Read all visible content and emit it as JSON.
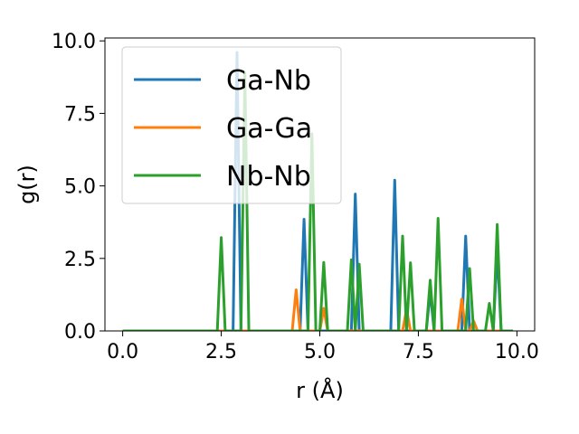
{
  "chart_data": {
    "type": "line",
    "xlabel": "r (Å)",
    "ylabel": "g(r)",
    "xlim": [
      -0.45,
      10.45
    ],
    "ylim": [
      0,
      10.1
    ],
    "xticks": [
      0.0,
      2.5,
      5.0,
      7.5,
      10.0
    ],
    "xtick_labels": [
      "0.0",
      "2.5",
      "5.0",
      "7.5",
      "10.0"
    ],
    "yticks": [
      0.0,
      2.5,
      5.0,
      7.5,
      10.0
    ],
    "ytick_labels": [
      "0.0",
      "2.5",
      "5.0",
      "7.5",
      "10.0"
    ],
    "grid": false,
    "legend_placement": "upper left",
    "series": [
      {
        "name": "Ga-Nb",
        "color": "#1f77b4",
        "x": [
          0.0,
          2.8,
          2.9,
          3.0,
          4.5,
          4.6,
          4.7,
          5.8,
          5.9,
          6.0,
          6.8,
          6.9,
          7.0,
          7.7,
          7.8,
          7.9,
          8.6,
          8.7,
          8.8,
          9.4,
          9.5,
          9.6,
          9.9
        ],
        "y": [
          0,
          0,
          9.6,
          0,
          0,
          3.85,
          0,
          0,
          4.72,
          0,
          0,
          5.2,
          0,
          0,
          1.35,
          0,
          0,
          3.27,
          0,
          0,
          2.8,
          0,
          0
        ]
      },
      {
        "name": "Ga-Ga",
        "color": "#ff7f0e",
        "x": [
          0.0,
          4.3,
          4.4,
          4.5,
          5.0,
          5.1,
          5.2,
          7.1,
          7.2,
          7.3,
          8.5,
          8.6,
          8.7,
          8.8,
          8.9,
          9.0,
          9.9
        ],
        "y": [
          0,
          0,
          1.42,
          0,
          0,
          0.78,
          0,
          0,
          0.75,
          0,
          0,
          1.1,
          0,
          0,
          0.35,
          0,
          0
        ]
      },
      {
        "name": "Nb-Nb",
        "color": "#2ca02c",
        "x": [
          0.0,
          2.4,
          2.5,
          2.6,
          3.0,
          3.1,
          3.2,
          4.7,
          4.8,
          4.9,
          5.0,
          5.1,
          5.2,
          5.7,
          5.8,
          5.9,
          6.0,
          6.1,
          7.0,
          7.1,
          7.2,
          7.3,
          7.4,
          7.7,
          7.8,
          7.9,
          8.0,
          8.1,
          8.7,
          8.8,
          8.9,
          9.2,
          9.3,
          9.4,
          9.5,
          9.6,
          9.9
        ],
        "y": [
          0,
          0,
          3.22,
          0,
          0,
          8.9,
          0,
          0,
          6.8,
          0,
          0,
          2.36,
          0,
          0,
          2.45,
          0,
          2.3,
          0,
          0,
          3.27,
          0,
          2.35,
          0,
          0,
          1.75,
          0,
          3.88,
          0,
          0,
          2.15,
          0,
          0,
          0.95,
          0,
          3.67,
          0,
          0
        ]
      }
    ]
  }
}
